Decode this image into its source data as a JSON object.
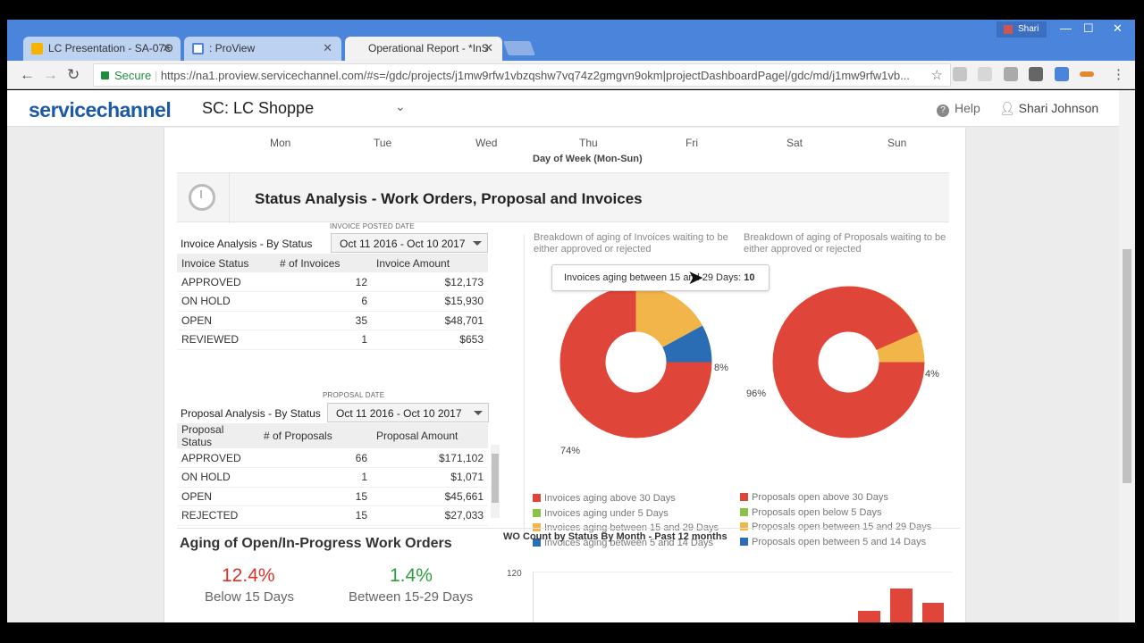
{
  "browser": {
    "tabs": [
      {
        "label": "LC Presentation - SA-07Θ",
        "icon_color": "#f4b400"
      },
      {
        "label": ": ProView",
        "icon_color": "#4a85db"
      },
      {
        "label": "Operational Report - *InS",
        "icon_color": ""
      }
    ],
    "user": "Shari",
    "secure_label": "Secure",
    "url": "https://na1.proview.servicechannel.com/#s=/gdc/projects/j1mw9rfw1vbzqshw7vq74z2gmgvn9okm|projectDashboardPage|/gdc/md/j1mw9rfw1vb..."
  },
  "app": {
    "logo": "servicechannel",
    "site": "SC: LC Shoppe",
    "help": "Help",
    "user_name": "Shari Johnson"
  },
  "weekday_axis": {
    "days": [
      "Mon",
      "Tue",
      "Wed",
      "Thu",
      "Fri",
      "Sat",
      "Sun"
    ],
    "title": "Day of Week (Mon-Sun)"
  },
  "section": {
    "title": "Status Analysis - Work Orders, Proposal and Invoices"
  },
  "invoice": {
    "caption": "INVOICE POSTED DATE",
    "label": "Invoice Analysis - By Status",
    "range": "Oct 11 2016 - Oct 10 2017",
    "headers": [
      "Invoice Status",
      "# of Invoices",
      "Invoice Amount"
    ],
    "rows": [
      [
        "APPROVED",
        "12",
        "$12,173"
      ],
      [
        "ON HOLD",
        "6",
        "$15,930"
      ],
      [
        "OPEN",
        "35",
        "$48,701"
      ],
      [
        "REVIEWED",
        "1",
        "$653"
      ]
    ]
  },
  "proposal": {
    "caption": "PROPOSAL DATE",
    "label": "Proposal Analysis - By Status",
    "range": "Oct 11 2016 - Oct 10 2017",
    "headers": [
      "Proposal Status",
      "# of Proposals",
      "Proposal Amount"
    ],
    "rows": [
      [
        "APPROVED",
        "66",
        "$171,102"
      ],
      [
        "ON HOLD",
        "1",
        "$1,071"
      ],
      [
        "OPEN",
        "15",
        "$45,661"
      ],
      [
        "REJECTED",
        "15",
        "$27,033"
      ]
    ]
  },
  "invoice_donut": {
    "caption_1": "Breakdown of aging of Invoices waiting to be",
    "caption_2": "either approved or rejected",
    "tooltip_label": "Invoices aging between 15 and 29 Days: ",
    "tooltip_value": "10",
    "labels": {
      "big": "74%",
      "small": "8%"
    },
    "legend": [
      {
        "label": "Invoices aging above 30 Days",
        "color": "#e0453a"
      },
      {
        "label": "Invoices aging under 5 Days",
        "color": "#8bc34a"
      },
      {
        "label": "Invoices aging between 15 and 29 Days",
        "color": "#f2b54a"
      },
      {
        "label": "Invoices aging between 5 and 14 Days",
        "color": "#2a6db5"
      }
    ]
  },
  "proposal_donut": {
    "caption_1": "Breakdown of aging of Proposals waiting to be",
    "caption_2": "either approved or rejected",
    "labels": {
      "big": "96%",
      "small": "4%"
    },
    "legend": [
      {
        "label": "Proposals open above 30 Days",
        "color": "#e0453a"
      },
      {
        "label": "Proposals open below 5 Days",
        "color": "#8bc34a"
      },
      {
        "label": "Proposals open between 15 and 29 Days",
        "color": "#f2b54a"
      },
      {
        "label": "Proposals open between 5 and 14 Days",
        "color": "#2a6db5"
      }
    ]
  },
  "aging": {
    "title": "Aging of Open/In-Progress Work Orders",
    "below_value": "12.4%",
    "below_label": "Below 15 Days",
    "below_color": "#d9342b",
    "between_value": "1.4%",
    "between_label": "Between 15-29 Days",
    "between_color": "#2e9e3e"
  },
  "wo_chart": {
    "title": "WO Count by Status By Month - Past 12 months",
    "ytick": "120"
  }
}
